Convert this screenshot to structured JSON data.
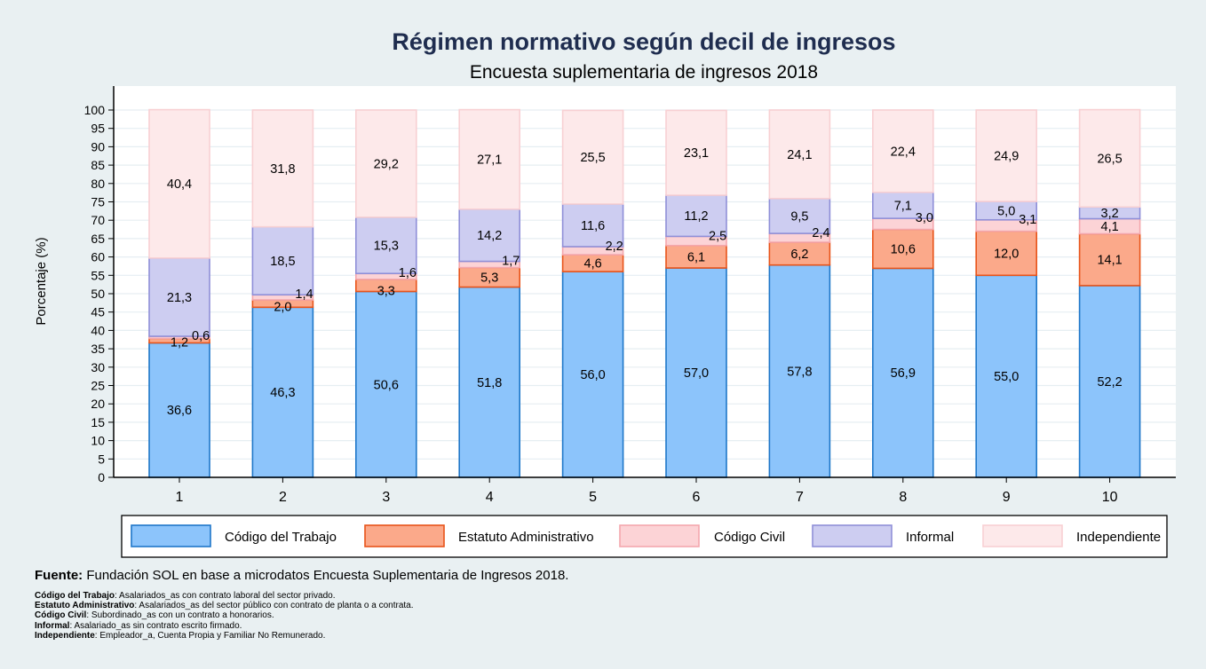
{
  "chart_data": {
    "type": "bar",
    "stacked": true,
    "title": "Régimen normativo según decil de ingresos",
    "subtitle": "Encuesta suplementaria de ingresos 2018",
    "xlabel": "",
    "ylabel": "Porcentaje (%)",
    "ylim": [
      0,
      100
    ],
    "yticks": [
      "0",
      "5",
      "10",
      "15",
      "20",
      "25",
      "30",
      "35",
      "40",
      "45",
      "50",
      "55",
      "60",
      "65",
      "70",
      "75",
      "80",
      "85",
      "90",
      "95",
      "100"
    ],
    "grid": true,
    "legend_position": "bottom",
    "categories": [
      "1",
      "2",
      "3",
      "4",
      "5",
      "6",
      "7",
      "8",
      "9",
      "10"
    ],
    "series": [
      {
        "name": "Código del Trabajo",
        "color": "#8cc4fb",
        "stroke": "#1f77c9",
        "values": [
          36.6,
          46.3,
          50.6,
          51.8,
          56.0,
          57.0,
          57.8,
          56.9,
          55.0,
          52.2
        ],
        "labels": [
          "36,6",
          "46,3",
          "50,6",
          "51,8",
          "56,0",
          "57,0",
          "57,8",
          "56,9",
          "55,0",
          "52,2"
        ]
      },
      {
        "name": "Estatuto Administrativo",
        "color": "#fba98a",
        "stroke": "#e8541a",
        "values": [
          1.2,
          2.0,
          3.3,
          5.3,
          4.6,
          6.1,
          6.2,
          10.6,
          12.0,
          14.1
        ],
        "labels": [
          "1,2",
          "2,0",
          "3,3",
          "5,3",
          "4,6",
          "6,1",
          "6,2",
          "10,6",
          "12,0",
          "14,1"
        ]
      },
      {
        "name": "Código Civil",
        "color": "#fcd3d6",
        "stroke": "#f4a7ad",
        "values": [
          0.6,
          1.4,
          1.6,
          1.7,
          2.2,
          2.5,
          2.4,
          3.0,
          3.1,
          4.1
        ],
        "labels": [
          "0,6",
          "1,4",
          "1,6",
          "1,7",
          "2,2",
          "2,5",
          "2,4",
          "3,0",
          "3,1",
          "4,1"
        ]
      },
      {
        "name": "Informal",
        "color": "#cdcdf1",
        "stroke": "#8f8fd8",
        "values": [
          21.3,
          18.5,
          15.3,
          14.2,
          11.6,
          11.2,
          9.5,
          7.1,
          5.0,
          3.2
        ],
        "labels": [
          "21,3",
          "18,5",
          "15,3",
          "14,2",
          "11,6",
          "11,2",
          "9,5",
          "7,1",
          "5,0",
          "3,2"
        ]
      },
      {
        "name": "Independiente",
        "color": "#fde9ea",
        "stroke": "#f8d0d3",
        "values": [
          40.4,
          31.8,
          29.2,
          27.1,
          25.5,
          23.1,
          24.1,
          22.4,
          24.9,
          26.5
        ],
        "labels": [
          "40,4",
          "31,8",
          "29,2",
          "27,1",
          "25,5",
          "23,1",
          "24,1",
          "22,4",
          "24,9",
          "26,5"
        ]
      }
    ]
  },
  "source": {
    "label": "Fuente:",
    "text": " Fundación SOL en base a microdatos Encuesta Suplementaria de Ingresos 2018."
  },
  "notes": [
    {
      "term": "Código del Trabajo",
      "text": ": Asalariados_as con contrato laboral del sector privado."
    },
    {
      "term": "Estatuto Administrativo",
      "text": ": Asalariados_as del sector público con contrato de planta o a contrata."
    },
    {
      "term": "Código Civil",
      "text": ": Subordinado_as con un contrato a honorarios."
    },
    {
      "term": "Informal",
      "text": ": Asalariado_as sin contrato escrito firmado."
    },
    {
      "term": "Independiente",
      "text": ": Empleador_a, Cuenta Propia y Familiar No Remunerado."
    }
  ]
}
